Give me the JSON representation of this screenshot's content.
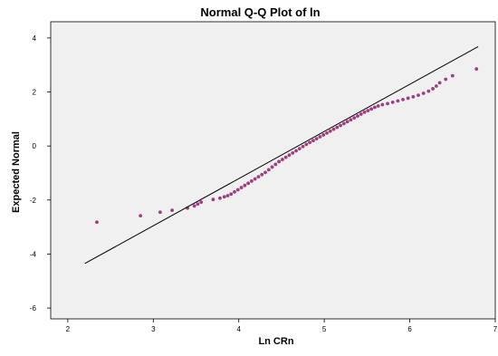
{
  "chart_data": {
    "type": "scatter",
    "title": "Normal Q-Q Plot of ln",
    "xlabel": "Ln CRn",
    "ylabel": "Expected Normal",
    "xlim": [
      1.8,
      7.0
    ],
    "ylim": [
      -6.4,
      4.6
    ],
    "x_ticks": [
      2,
      3,
      4,
      5,
      6,
      7
    ],
    "y_ticks": [
      -6,
      -4,
      -2,
      0,
      2,
      4
    ],
    "grid": false,
    "legend": "none",
    "colors": {
      "plot_background": "#f0f0f0",
      "points": "#a03c82",
      "reference_line": "#000000"
    },
    "reference_line": {
      "x": [
        2.2,
        6.8
      ],
      "y": [
        -4.35,
        3.68
      ]
    },
    "points": [
      [
        2.34,
        -2.82
      ],
      [
        2.85,
        -2.58
      ],
      [
        3.08,
        -2.45
      ],
      [
        3.22,
        -2.38
      ],
      [
        3.4,
        -2.3
      ],
      [
        3.48,
        -2.22
      ],
      [
        3.52,
        -2.15
      ],
      [
        3.56,
        -2.08
      ],
      [
        3.7,
        -1.98
      ],
      [
        3.78,
        -1.93
      ],
      [
        3.83,
        -1.88
      ],
      [
        3.87,
        -1.84
      ],
      [
        3.91,
        -1.78
      ],
      [
        3.95,
        -1.7
      ],
      [
        3.99,
        -1.62
      ],
      [
        4.03,
        -1.54
      ],
      [
        4.07,
        -1.46
      ],
      [
        4.11,
        -1.38
      ],
      [
        4.15,
        -1.3
      ],
      [
        4.19,
        -1.22
      ],
      [
        4.23,
        -1.14
      ],
      [
        4.27,
        -1.06
      ],
      [
        4.31,
        -0.98
      ],
      [
        4.35,
        -0.88
      ],
      [
        4.39,
        -0.78
      ],
      [
        4.43,
        -0.68
      ],
      [
        4.47,
        -0.58
      ],
      [
        4.51,
        -0.5
      ],
      [
        4.55,
        -0.42
      ],
      [
        4.59,
        -0.34
      ],
      [
        4.63,
        -0.26
      ],
      [
        4.67,
        -0.18
      ],
      [
        4.71,
        -0.1
      ],
      [
        4.75,
        -0.02
      ],
      [
        4.79,
        0.06
      ],
      [
        4.83,
        0.13
      ],
      [
        4.87,
        0.2
      ],
      [
        4.91,
        0.27
      ],
      [
        4.95,
        0.34
      ],
      [
        4.99,
        0.41
      ],
      [
        5.03,
        0.48
      ],
      [
        5.07,
        0.55
      ],
      [
        5.11,
        0.62
      ],
      [
        5.15,
        0.69
      ],
      [
        5.19,
        0.76
      ],
      [
        5.23,
        0.83
      ],
      [
        5.27,
        0.9
      ],
      [
        5.31,
        0.97
      ],
      [
        5.35,
        1.04
      ],
      [
        5.39,
        1.11
      ],
      [
        5.43,
        1.18
      ],
      [
        5.47,
        1.25
      ],
      [
        5.51,
        1.31
      ],
      [
        5.55,
        1.37
      ],
      [
        5.59,
        1.43
      ],
      [
        5.63,
        1.48
      ],
      [
        5.68,
        1.53
      ],
      [
        5.74,
        1.57
      ],
      [
        5.8,
        1.62
      ],
      [
        5.86,
        1.67
      ],
      [
        5.92,
        1.72
      ],
      [
        5.98,
        1.77
      ],
      [
        6.04,
        1.82
      ],
      [
        6.1,
        1.88
      ],
      [
        6.16,
        1.95
      ],
      [
        6.22,
        2.03
      ],
      [
        6.27,
        2.12
      ],
      [
        6.31,
        2.22
      ],
      [
        6.35,
        2.34
      ],
      [
        6.42,
        2.47
      ],
      [
        6.5,
        2.6
      ],
      [
        6.78,
        2.85
      ]
    ]
  }
}
